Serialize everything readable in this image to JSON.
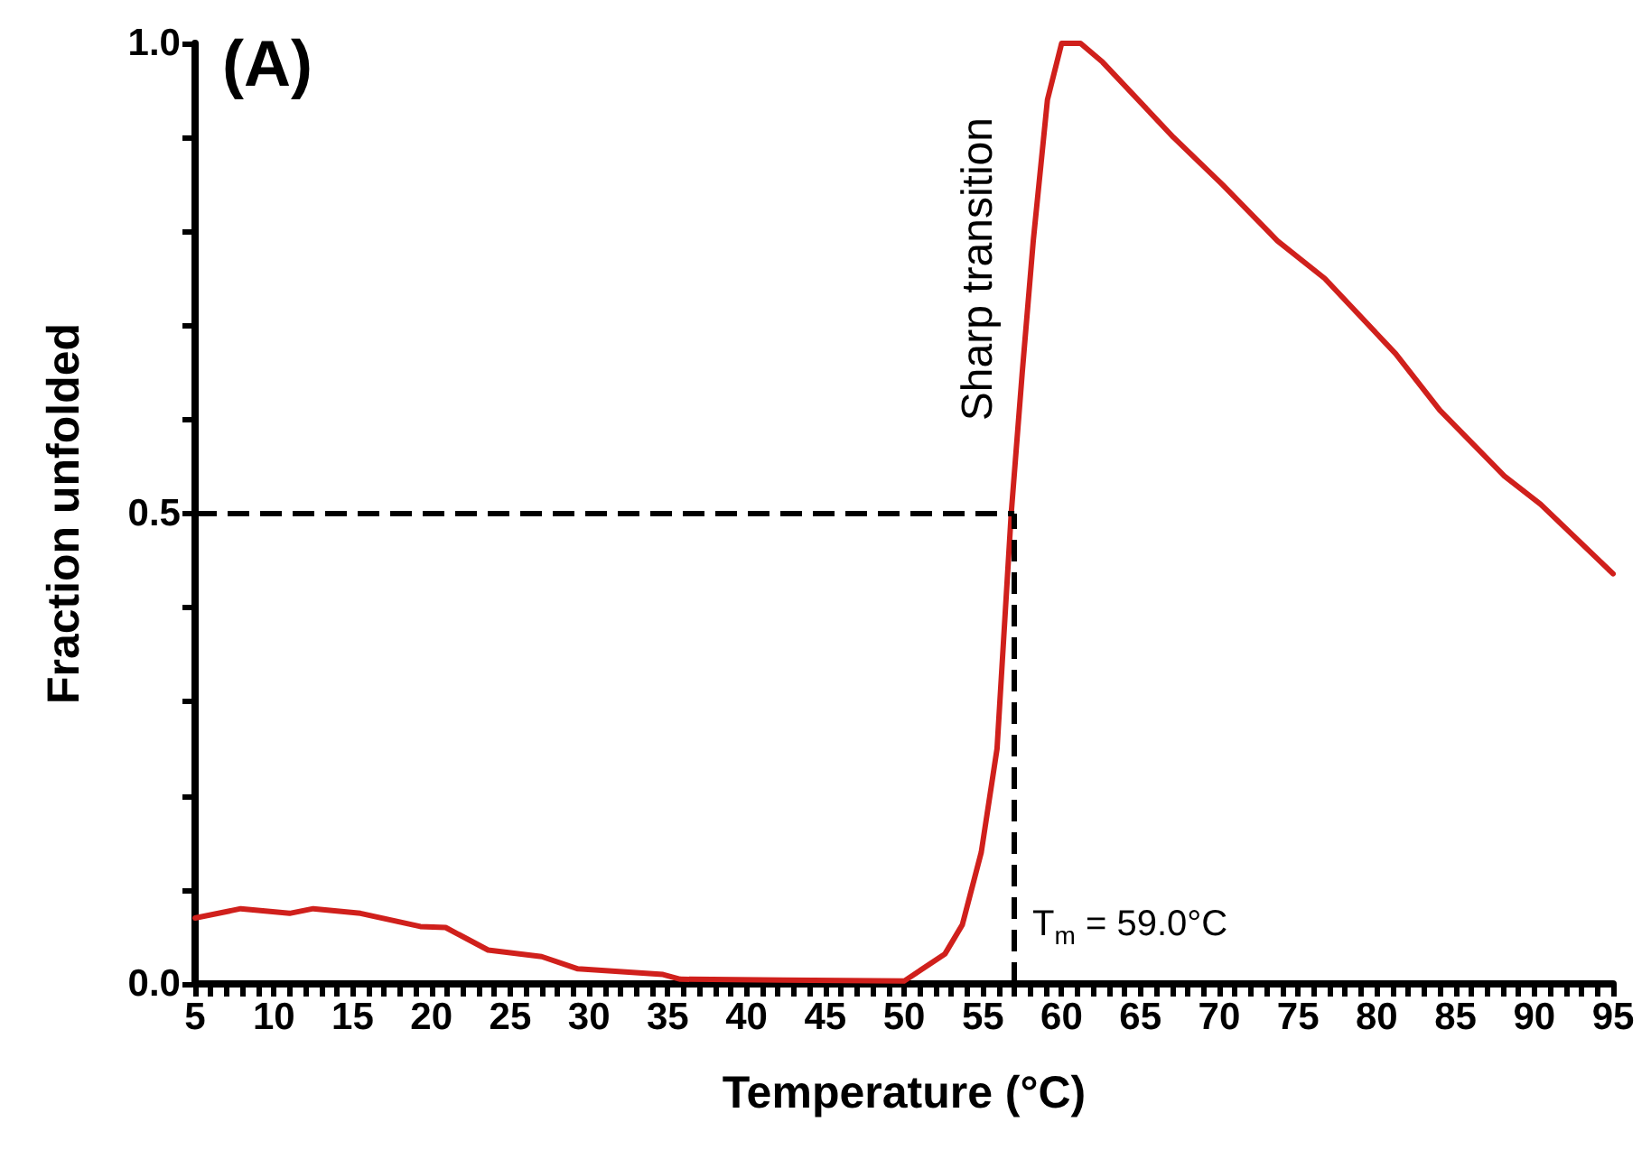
{
  "chart_data": {
    "type": "line",
    "title": "(A)",
    "xlabel": "Temperature (°C)",
    "ylabel": "Fraction unfolded",
    "x": [
      5,
      7.9,
      11,
      12.5,
      15.5,
      19.3,
      20.9,
      23.6,
      27,
      29.3,
      34.7,
      35.8,
      42.3,
      50,
      52.6,
      53.7,
      54.9,
      55.9,
      56.8,
      57.5,
      58.2,
      59.1,
      60,
      61.2,
      62.6,
      67.1,
      70.2,
      73.7,
      76.7,
      81.2,
      84,
      88.1,
      90.4,
      95
    ],
    "series": [
      {
        "color": "#d0201c",
        "values": [
          0.07,
          0.08,
          0.075,
          0.08,
          0.075,
          0.061,
          0.06,
          0.036,
          0.029,
          0.016,
          0.01,
          0.005,
          0.004,
          0.003,
          0.032,
          0.063,
          0.14,
          0.25,
          0.5,
          0.65,
          0.79,
          0.94,
          1.0,
          1.0,
          0.98,
          0.9,
          0.85,
          0.79,
          0.75,
          0.67,
          0.61,
          0.54,
          0.51,
          0.436
        ]
      }
    ],
    "xlim": [
      5,
      95
    ],
    "xticks": [
      5,
      {
        "value": 6,
        "label": null
      },
      {
        "value": 7,
        "label": null
      },
      {
        "value": 8,
        "label": null
      },
      {
        "value": 9,
        "label": null
      },
      10,
      {
        "value": 11,
        "label": null
      },
      {
        "value": 12,
        "label": null
      },
      {
        "value": 13,
        "label": null
      },
      {
        "value": 14,
        "label": null
      },
      15,
      {
        "value": 16,
        "label": null
      },
      {
        "value": 17,
        "label": null
      },
      {
        "value": 18,
        "label": null
      },
      {
        "value": 19,
        "label": null
      },
      20,
      {
        "value": 21,
        "label": null
      },
      {
        "value": 22,
        "label": null
      },
      {
        "value": 23,
        "label": null
      },
      {
        "value": 24,
        "label": null
      },
      25,
      {
        "value": 26,
        "label": null
      },
      {
        "value": 27,
        "label": null
      },
      {
        "value": 28,
        "label": null
      },
      {
        "value": 29,
        "label": null
      },
      30,
      {
        "value": 31,
        "label": null
      },
      {
        "value": 32,
        "label": null
      },
      {
        "value": 33,
        "label": null
      },
      {
        "value": 34,
        "label": null
      },
      35,
      {
        "value": 36,
        "label": null
      },
      {
        "value": 37,
        "label": null
      },
      {
        "value": 38,
        "label": null
      },
      {
        "value": 39,
        "label": null
      },
      40,
      {
        "value": 41,
        "label": null
      },
      {
        "value": 42,
        "label": null
      },
      {
        "value": 43,
        "label": null
      },
      {
        "value": 44,
        "label": null
      },
      45,
      {
        "value": 46,
        "label": null
      },
      {
        "value": 47,
        "label": null
      },
      {
        "value": 48,
        "label": null
      },
      {
        "value": 49,
        "label": null
      },
      50,
      {
        "value": 51,
        "label": null
      },
      {
        "value": 52,
        "label": null
      },
      {
        "value": 53,
        "label": null
      },
      {
        "value": 54,
        "label": null
      },
      55,
      {
        "value": 56,
        "label": null
      },
      {
        "value": 57,
        "label": null
      },
      {
        "value": 58,
        "label": null
      },
      {
        "value": 59,
        "label": null
      },
      60,
      {
        "value": 61,
        "label": null
      },
      {
        "value": 62,
        "label": null
      },
      {
        "value": 63,
        "label": null
      },
      {
        "value": 64,
        "label": null
      },
      65,
      {
        "value": 66,
        "label": null
      },
      {
        "value": 67,
        "label": null
      },
      {
        "value": 68,
        "label": null
      },
      {
        "value": 69,
        "label": null
      },
      70,
      {
        "value": 71,
        "label": null
      },
      {
        "value": 72,
        "label": null
      },
      {
        "value": 73,
        "label": null
      },
      {
        "value": 74,
        "label": null
      },
      75,
      {
        "value": 76,
        "label": null
      },
      {
        "value": 77,
        "label": null
      },
      {
        "value": 78,
        "label": null
      },
      {
        "value": 79,
        "label": null
      },
      80,
      {
        "value": 81,
        "label": null
      },
      {
        "value": 82,
        "label": null
      },
      {
        "value": 83,
        "label": null
      },
      {
        "value": 84,
        "label": null
      },
      85,
      {
        "value": 86,
        "label": null
      },
      {
        "value": 87,
        "label": null
      },
      {
        "value": 88,
        "label": null
      },
      {
        "value": 89,
        "label": null
      },
      90,
      {
        "value": 91,
        "label": null
      },
      {
        "value": 92,
        "label": null
      },
      {
        "value": 93,
        "label": null
      },
      {
        "value": 94,
        "label": null
      },
      95
    ],
    "ylim": [
      0,
      1
    ],
    "yticks": [
      {
        "value": 0,
        "label": "0.0"
      },
      {
        "value": 0.1,
        "label": null
      },
      {
        "value": 0.2,
        "label": null
      },
      {
        "value": 0.3,
        "label": null
      },
      {
        "value": 0.4,
        "label": null
      },
      {
        "value": 0.5,
        "label": "0.5"
      },
      {
        "value": 0.6,
        "label": null
      },
      {
        "value": 0.7,
        "label": null
      },
      {
        "value": 0.8,
        "label": null
      },
      {
        "value": 0.9,
        "label": null
      },
      {
        "value": 1,
        "label": "1.0"
      }
    ],
    "ref_lines": [
      {
        "axis": "x",
        "value": 57,
        "line_style": "dashed",
        "color": "#000000"
      },
      {
        "axis": "y",
        "value": 0.5,
        "line_style": "dashed",
        "color": "#000000"
      }
    ],
    "annotations": [
      "Sharp transition",
      "T$_{m}$ = 59.0°C"
    ],
    "grid": false,
    "marker": "none",
    "line_style": "solid"
  }
}
